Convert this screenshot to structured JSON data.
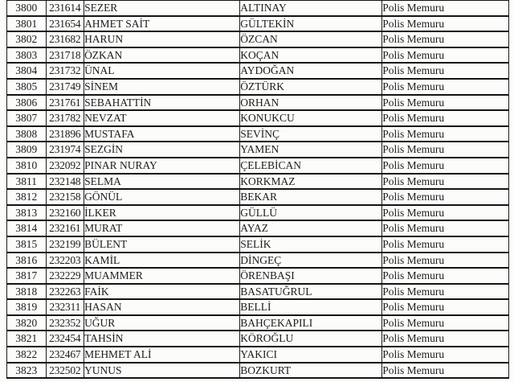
{
  "table": {
    "title_value_repeated": "Polis Memuru",
    "rows": [
      {
        "no": "3800",
        "registry": "231614",
        "first_name": "SEZER",
        "last_name": "ALTINAY",
        "title": "Polis Memuru"
      },
      {
        "no": "3801",
        "registry": "231654",
        "first_name": "AHMET SAİT",
        "last_name": "GÜLTEKİN",
        "title": "Polis Memuru"
      },
      {
        "no": "3802",
        "registry": "231682",
        "first_name": "HARUN",
        "last_name": "ÖZCAN",
        "title": "Polis Memuru"
      },
      {
        "no": "3803",
        "registry": "231718",
        "first_name": "ÖZKAN",
        "last_name": "KOÇAN",
        "title": "Polis Memuru"
      },
      {
        "no": "3804",
        "registry": "231732",
        "first_name": "ÜNAL",
        "last_name": "AYDOĞAN",
        "title": "Polis Memuru"
      },
      {
        "no": "3805",
        "registry": "231749",
        "first_name": "SİNEM",
        "last_name": "ÖZTÜRK",
        "title": "Polis Memuru"
      },
      {
        "no": "3806",
        "registry": "231761",
        "first_name": "SEBAHATTİN",
        "last_name": "ORHAN",
        "title": "Polis Memuru"
      },
      {
        "no": "3807",
        "registry": "231782",
        "first_name": "NEVZAT",
        "last_name": "KONUKCU",
        "title": "Polis Memuru"
      },
      {
        "no": "3808",
        "registry": "231896",
        "first_name": "MUSTAFA",
        "last_name": "SEVİNÇ",
        "title": "Polis Memuru"
      },
      {
        "no": "3809",
        "registry": "231974",
        "first_name": "SEZGİN",
        "last_name": "YAMEN",
        "title": "Polis Memuru"
      },
      {
        "no": "3810",
        "registry": "232092",
        "first_name": "PINAR NURAY",
        "last_name": "ÇELEBİCAN",
        "title": "Polis Memuru"
      },
      {
        "no": "3811",
        "registry": "232148",
        "first_name": "SELMA",
        "last_name": "KORKMAZ",
        "title": "Polis Memuru"
      },
      {
        "no": "3812",
        "registry": "232158",
        "first_name": "GÖNÜL",
        "last_name": "BEKAR",
        "title": "Polis Memuru"
      },
      {
        "no": "3813",
        "registry": "232160",
        "first_name": "İLKER",
        "last_name": "GÜLLÜ",
        "title": "Polis Memuru"
      },
      {
        "no": "3814",
        "registry": "232161",
        "first_name": "MURAT",
        "last_name": "AYAZ",
        "title": "Polis Memuru"
      },
      {
        "no": "3815",
        "registry": "232199",
        "first_name": "BÜLENT",
        "last_name": "SELİK",
        "title": "Polis Memuru"
      },
      {
        "no": "3816",
        "registry": "232203",
        "first_name": "KAMİL",
        "last_name": "DİNGEÇ",
        "title": "Polis Memuru"
      },
      {
        "no": "3817",
        "registry": "232229",
        "first_name": "MUAMMER",
        "last_name": "ÖRENBAŞI",
        "title": "Polis Memuru"
      },
      {
        "no": "3818",
        "registry": "232263",
        "first_name": "FAİK",
        "last_name": "BASATUĞRUL",
        "title": "Polis Memuru"
      },
      {
        "no": "3819",
        "registry": "232311",
        "first_name": "HASAN",
        "last_name": "BELLİ",
        "title": "Polis Memuru"
      },
      {
        "no": "3820",
        "registry": "232352",
        "first_name": "UĞUR",
        "last_name": "BAHÇEKAPILI",
        "title": "Polis Memuru"
      },
      {
        "no": "3821",
        "registry": "232454",
        "first_name": "TAHSİN",
        "last_name": "KÖROĞLU",
        "title": "Polis Memuru"
      },
      {
        "no": "3822",
        "registry": "232467",
        "first_name": "MEHMET ALİ",
        "last_name": "YAKICI",
        "title": "Polis Memuru"
      },
      {
        "no": "3823",
        "registry": "232502",
        "first_name": "YUNUS",
        "last_name": "BOZKURT",
        "title": "Polis Memuru"
      }
    ]
  }
}
